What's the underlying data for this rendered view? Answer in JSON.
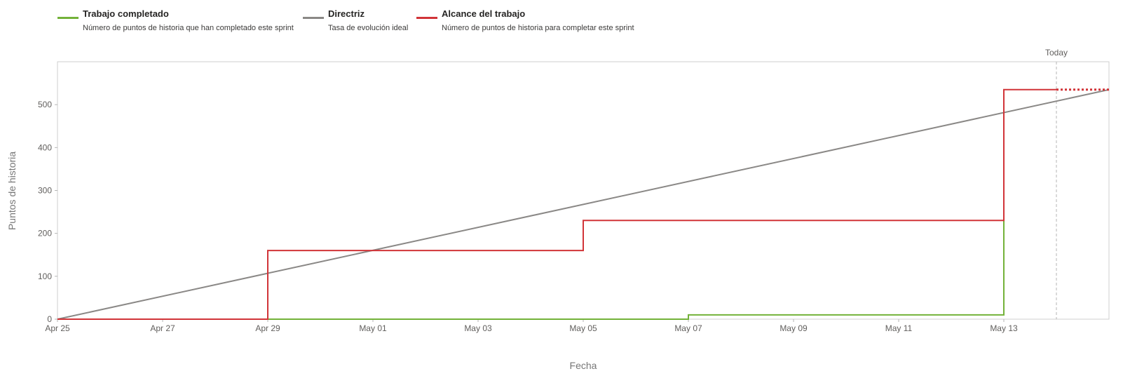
{
  "legend": [
    {
      "title": "Trabajo completado",
      "desc": "Número de puntos de historia que han completado este sprint",
      "color": "#73b239"
    },
    {
      "title": "Directriz",
      "desc": "Tasa de evolución ideal",
      "color": "#8a8886"
    },
    {
      "title": "Alcance del trabajo",
      "desc": "Número de puntos de historia para completar este sprint",
      "color": "#d13438"
    }
  ],
  "today_label": "Today",
  "chart_data": {
    "type": "line",
    "xlabel": "Fecha",
    "ylabel": "Puntos de historia",
    "x_axis": {
      "min": "2024-04-25",
      "max": "2024-05-15",
      "ticks": [
        "Apr 25",
        "Apr 27",
        "Apr 29",
        "May 01",
        "May 03",
        "May 05",
        "May 07",
        "May 09",
        "May 11",
        "May 13"
      ]
    },
    "y_axis": {
      "min": 0,
      "max": 600,
      "ticks": [
        0,
        100,
        200,
        300,
        400,
        500
      ]
    },
    "today": "2024-05-14",
    "grid": false,
    "legend_position": "top",
    "series": [
      {
        "name": "Trabajo completado",
        "color": "#73b239",
        "style": "step",
        "points": [
          [
            "2024-04-25",
            0
          ],
          [
            "2024-05-07",
            0
          ],
          [
            "2024-05-07",
            10
          ],
          [
            "2024-05-07",
            10
          ],
          [
            "2024-05-07",
            0
          ],
          [
            "2024-05-07",
            0
          ],
          [
            "2024-05-07",
            10
          ],
          [
            "2024-05-13",
            10
          ],
          [
            "2024-05-13",
            180
          ],
          [
            "2024-05-13",
            180
          ],
          [
            "2024-05-13",
            230
          ],
          [
            "2024-05-13",
            230
          ]
        ]
      },
      {
        "name": "Directriz",
        "color": "#8a8886",
        "style": "line",
        "points": [
          [
            "2024-04-25",
            0
          ],
          [
            "2024-05-15",
            535
          ]
        ]
      },
      {
        "name": "Alcance del trabajo",
        "color": "#d13438",
        "style": "step",
        "points": [
          [
            "2024-04-25",
            0
          ],
          [
            "2024-04-29",
            0
          ],
          [
            "2024-04-29",
            160
          ],
          [
            "2024-05-05",
            160
          ],
          [
            "2024-05-05",
            230
          ],
          [
            "2024-05-13",
            230
          ],
          [
            "2024-05-13",
            535
          ],
          [
            "2024-05-14",
            535
          ]
        ],
        "projection": [
          [
            "2024-05-14",
            535
          ],
          [
            "2024-05-15",
            535
          ]
        ]
      }
    ]
  }
}
